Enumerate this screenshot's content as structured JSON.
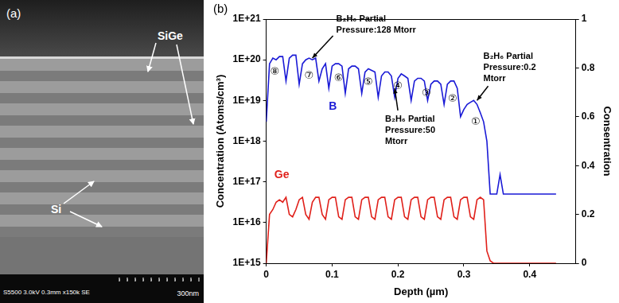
{
  "chart_data": {
    "type": "line",
    "title": "(b)",
    "xlabel": "Depth (µm)",
    "ylabel": "Concentration (Atoms/cm³)",
    "y2label": "Consentration",
    "log": "y",
    "grid": false,
    "x": [
      0,
      0.005,
      0.01,
      0.015,
      0.02,
      0.025,
      0.03,
      0.035,
      0.04,
      0.045,
      0.05,
      0.055,
      0.06,
      0.065,
      0.07,
      0.075,
      0.08,
      0.085,
      0.09,
      0.095,
      0.1,
      0.105,
      0.11,
      0.115,
      0.12,
      0.125,
      0.13,
      0.135,
      0.14,
      0.145,
      0.15,
      0.155,
      0.16,
      0.165,
      0.17,
      0.175,
      0.18,
      0.185,
      0.19,
      0.195,
      0.2,
      0.205,
      0.21,
      0.215,
      0.22,
      0.225,
      0.23,
      0.235,
      0.24,
      0.245,
      0.25,
      0.255,
      0.26,
      0.265,
      0.27,
      0.275,
      0.28,
      0.285,
      0.29,
      0.295,
      0.3,
      0.305,
      0.31,
      0.315,
      0.32,
      0.325,
      0.33,
      0.335,
      0.34,
      0.345,
      0.35,
      0.355,
      0.36,
      0.38,
      0.4,
      0.42,
      0.44
    ],
    "series": [
      {
        "name": "B",
        "color": "#1a1ad6",
        "values": [
          3e+18,
          8e+19,
          1.1e+20,
          1e+20,
          1.2e+20,
          1.2e+20,
          3e+19,
          1.1e+20,
          1.3e+20,
          1.3e+20,
          2.5e+19,
          8e+19,
          1e+20,
          1.1e+20,
          1e+20,
          1.1e+20,
          3e+19,
          6e+19,
          8e+19,
          2e+19,
          7e+19,
          8e+19,
          8e+19,
          7e+19,
          1.5e+19,
          6e+19,
          7e+19,
          7e+19,
          6e+19,
          1.5e+19,
          5e+19,
          6e+19,
          5.5e+19,
          5e+19,
          1.2e+19,
          4e+19,
          5e+19,
          5e+19,
          4e+19,
          1.2e+19,
          3.5e+19,
          4.5e+19,
          4e+19,
          3.5e+19,
          1e+19,
          3e+19,
          3.5e+19,
          3.5e+19,
          3e+19,
          1e+19,
          2.5e+19,
          3e+19,
          3e+19,
          2.5e+19,
          8e+18,
          2.5e+19,
          3e+19,
          3e+19,
          2e+19,
          4e+18,
          6e+18,
          8e+18,
          9e+18,
          1e+19,
          8e+18,
          5e+18,
          3e+18,
          1e+18,
          5e+16,
          5e+16,
          5e+16,
          1.5e+17,
          5e+16,
          5e+16,
          5e+16,
          5e+16,
          5e+16
        ]
      },
      {
        "name": "Ge",
        "color": "#e0201a",
        "axis": "y2",
        "values": [
          0,
          0.2,
          0.22,
          0.25,
          0.26,
          0.25,
          0.27,
          0.2,
          0.19,
          0.22,
          0.26,
          0.27,
          0.2,
          0.18,
          0.25,
          0.27,
          0.27,
          0.2,
          0.18,
          0.26,
          0.27,
          0.27,
          0.19,
          0.18,
          0.26,
          0.27,
          0.27,
          0.19,
          0.18,
          0.26,
          0.27,
          0.27,
          0.19,
          0.18,
          0.26,
          0.27,
          0.27,
          0.19,
          0.18,
          0.26,
          0.27,
          0.27,
          0.19,
          0.18,
          0.26,
          0.27,
          0.27,
          0.19,
          0.18,
          0.26,
          0.27,
          0.27,
          0.19,
          0.18,
          0.26,
          0.27,
          0.27,
          0.19,
          0.18,
          0.26,
          0.27,
          0.27,
          0.19,
          0.18,
          0.26,
          0.27,
          0.26,
          0.05,
          0.01,
          0,
          0,
          0,
          0,
          0,
          0,
          0,
          0
        ]
      }
    ],
    "xlim": [
      0,
      0.47
    ],
    "xticks": [
      0,
      0.1,
      0.2,
      0.3,
      0.4
    ],
    "ylim": [
      1000000000000000.0,
      1e+21
    ],
    "yticks": [
      {
        "value": 1000000000000000.0,
        "label": "1E+15"
      },
      {
        "value": 1e+16,
        "label": "1E+16"
      },
      {
        "value": 1e+17,
        "label": "1E+17"
      },
      {
        "value": 1e+18,
        "label": "1E+18"
      },
      {
        "value": 1e+19,
        "label": "1E+19"
      },
      {
        "value": 1e+20,
        "label": "1E+20"
      },
      {
        "value": 1e+21,
        "label": "1E+21"
      }
    ],
    "y2lim": [
      0,
      1
    ],
    "y2ticks": [
      0,
      0.2,
      0.4,
      0.6,
      0.8,
      1
    ],
    "annotations": [
      {
        "text": "B₂H₆ Partial\nPressure:128 Mtorr",
        "x": 0.07,
        "y": 1.1e+20
      },
      {
        "text": "B₂H₆ Partial\nPressure:50\nMtorr",
        "x": 0.195,
        "y": 2e+19
      },
      {
        "text": "B₂H₆ Partial\nPressure:0.2\nMtorr",
        "x": 0.32,
        "y": 1e+19
      },
      {
        "text": "⑧",
        "x": 0.013,
        "y": 5e+19
      },
      {
        "text": "⑦",
        "x": 0.065,
        "y": 4e+19
      },
      {
        "text": "⑥",
        "x": 0.11,
        "y": 3.5e+19
      },
      {
        "text": "⑤",
        "x": 0.155,
        "y": 2.8e+19
      },
      {
        "text": "④",
        "x": 0.2,
        "y": 2.2e+19
      },
      {
        "text": "③",
        "x": 0.243,
        "y": 1.5e+19
      },
      {
        "text": "②",
        "x": 0.283,
        "y": 1.1e+19
      },
      {
        "text": "①",
        "x": 0.318,
        "y": 3e+18
      }
    ]
  },
  "image_panel": {
    "panel_label": "(a)",
    "layer_labels": [
      "SiGe",
      "Si"
    ],
    "info": "S5500 3.0kV 0.3mm x150k SE",
    "scale_bar": "300nm"
  }
}
